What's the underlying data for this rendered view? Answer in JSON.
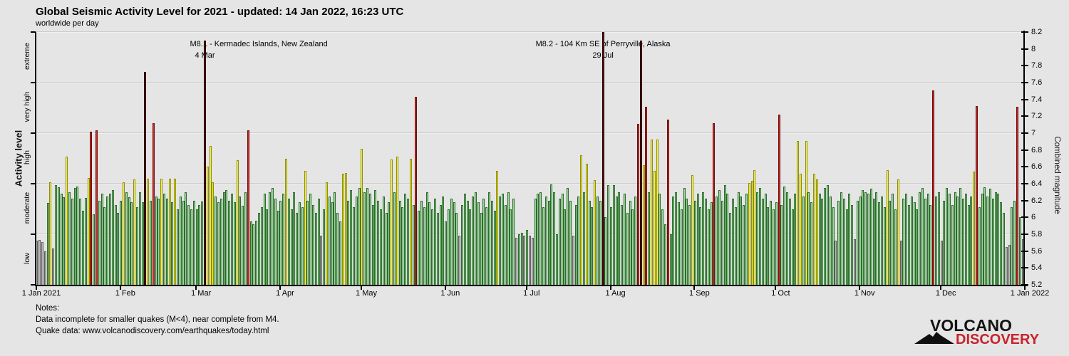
{
  "title": "Global Seismic Activity Level for 2021 - updated: 14 Jan 2022, 16:23 UTC",
  "subtitle": "worldwide per day",
  "y_left": {
    "label": "Activity level",
    "bands": [
      "low",
      "moderate",
      "high",
      "very high",
      "extreme"
    ]
  },
  "y_right": {
    "label": "Combined magnitude",
    "min": 5.2,
    "max": 8.2,
    "tick_step": 0.2
  },
  "x_ticks": [
    "1 Jan 2021",
    "1 Feb",
    "1 Mar",
    "1 Apr",
    "1 May",
    "1 Jun",
    "1 Jul",
    "1 Aug",
    "1 Sep",
    "1 Oct",
    "1 Nov",
    "1 Dec",
    "1 Jan 2022"
  ],
  "annotations": [
    {
      "line1": "M8.1 - Kermadec Islands, New Zealand",
      "line2": "4 Mar",
      "day_index": 62,
      "line1_anchor": "left",
      "line1_offset": -21
    },
    {
      "line1": "M8.2 - 104 Km SE of Perryville, Alaska",
      "line2": "29 Jul",
      "day_index": 209,
      "line1_anchor": "center",
      "line1_offset": 0
    }
  ],
  "notes": {
    "line1": "Notes:",
    "line2": "Data incomplete for smaller quakes (M<4), near complete from M4.",
    "line3": "Quake data: www.volcanodiscovery.com/earthquakes/today.html"
  },
  "logo": {
    "word1": "VOLCANO",
    "word2": "DISCOVERY",
    "word2_color": "#c8232c"
  },
  "colors": {
    "background": "#e5e5e5",
    "gridline": "#cbcbcb",
    "axis": "#000000",
    "levels": {
      "low": {
        "fill": "#b9b9b9",
        "border": "#5f5f5f"
      },
      "moderate": {
        "fill": "#97d897",
        "border": "#2e6b2e"
      },
      "high": {
        "fill": "#f7f43a",
        "border": "#8f8f10"
      },
      "very_high": {
        "fill": "#d62b22",
        "border": "#6b0f0f"
      },
      "extreme": {
        "fill": "#681010",
        "border": "#240303"
      }
    }
  },
  "chart_data": {
    "type": "bar",
    "title": "Global Seismic Activity Level for 2021",
    "xlabel": "",
    "ylabel_left": "Activity level",
    "ylabel_right": "Combined magnitude",
    "ylim": [
      5.2,
      8.2
    ],
    "grid": true,
    "legend": "none",
    "start_date": "2021-01-01",
    "days_per_point": 1,
    "level_thresholds": {
      "low": 5.2,
      "moderate": 5.8,
      "high": 6.4,
      "very_high": 7.0,
      "extreme": 7.6
    },
    "month_day_offsets": [
      0,
      31,
      59,
      90,
      120,
      151,
      181,
      212,
      243,
      273,
      304,
      334,
      365
    ],
    "values": [
      5.72,
      5.73,
      5.71,
      5.6,
      6.17,
      6.42,
      5.63,
      6.38,
      6.36,
      6.28,
      6.24,
      6.72,
      6.3,
      6.22,
      6.35,
      6.37,
      6.22,
      6.08,
      6.23,
      6.47,
      7.02,
      6.04,
      7.03,
      6.2,
      6.28,
      6.12,
      6.25,
      6.28,
      6.32,
      6.15,
      6.05,
      6.2,
      6.42,
      6.3,
      6.24,
      6.18,
      6.45,
      6.12,
      6.3,
      6.18,
      7.73,
      6.46,
      6.2,
      7.12,
      6.25,
      6.22,
      6.46,
      6.28,
      6.22,
      6.46,
      6.18,
      6.46,
      6.1,
      6.25,
      6.2,
      6.3,
      6.15,
      6.1,
      6.2,
      6.1,
      6.15,
      6.19,
      8.1,
      6.6,
      6.85,
      6.42,
      6.25,
      6.18,
      6.22,
      6.3,
      6.32,
      6.2,
      6.28,
      6.18,
      6.68,
      6.25,
      6.14,
      6.3,
      7.03,
      5.95,
      5.92,
      5.96,
      6.05,
      6.12,
      6.28,
      6.1,
      6.3,
      6.35,
      6.22,
      6.08,
      6.2,
      6.28,
      6.7,
      6.22,
      6.1,
      6.3,
      6.05,
      6.18,
      6.12,
      6.55,
      6.2,
      6.28,
      6.15,
      6.05,
      6.22,
      5.78,
      6.1,
      6.42,
      6.25,
      6.18,
      6.3,
      6.05,
      5.95,
      6.52,
      6.53,
      6.2,
      6.32,
      6.12,
      6.25,
      6.35,
      6.81,
      6.3,
      6.35,
      6.28,
      6.15,
      6.32,
      6.2,
      6.1,
      6.25,
      6.05,
      6.18,
      6.69,
      6.3,
      6.72,
      6.2,
      6.12,
      6.28,
      6.22,
      6.7,
      6.15,
      7.43,
      6.08,
      6.2,
      6.12,
      6.3,
      6.18,
      6.1,
      6.22,
      6.05,
      6.15,
      6.25,
      5.95,
      6.1,
      6.22,
      6.18,
      6.05,
      5.78,
      6.15,
      6.28,
      6.2,
      6.1,
      6.25,
      6.3,
      6.18,
      6.05,
      6.22,
      6.12,
      6.3,
      6.2,
      6.08,
      6.55,
      6.25,
      6.28,
      6.15,
      6.3,
      6.1,
      6.22,
      5.76,
      5.8,
      5.82,
      5.78,
      5.85,
      5.78,
      5.76,
      6.22,
      6.28,
      6.3,
      6.12,
      6.25,
      6.2,
      6.39,
      6.3,
      5.8,
      6.22,
      6.28,
      6.1,
      6.35,
      6.2,
      5.78,
      6.15,
      6.25,
      6.74,
      6.3,
      6.64,
      6.2,
      6.12,
      6.44,
      6.25,
      6.2,
      8.2,
      6.0,
      6.38,
      6.12,
      6.38,
      6.25,
      6.3,
      6.15,
      6.28,
      6.05,
      6.2,
      6.1,
      6.25,
      7.11,
      8.1,
      6.62,
      7.31,
      6.3,
      6.92,
      6.55,
      6.92,
      6.28,
      6.1,
      5.92,
      7.16,
      5.8,
      6.25,
      6.3,
      6.18,
      6.1,
      6.35,
      6.22,
      6.15,
      6.5,
      6.2,
      6.28,
      6.12,
      6.3,
      6.22,
      6.1,
      6.18,
      7.12,
      6.25,
      6.32,
      6.2,
      6.38,
      6.28,
      6.05,
      6.22,
      6.12,
      6.3,
      6.25,
      6.15,
      6.28,
      6.41,
      6.43,
      6.56,
      6.3,
      6.35,
      6.22,
      6.28,
      6.12,
      6.2,
      6.1,
      6.18,
      7.22,
      6.15,
      6.37,
      6.3,
      6.22,
      6.1,
      6.28,
      6.91,
      6.52,
      6.25,
      6.91,
      6.3,
      6.18,
      6.52,
      6.45,
      6.28,
      6.22,
      6.35,
      6.38,
      6.25,
      6.12,
      5.72,
      6.2,
      6.3,
      6.22,
      6.1,
      6.28,
      6.15,
      5.74,
      6.2,
      6.25,
      6.32,
      6.3,
      6.28,
      6.34,
      6.22,
      6.3,
      6.18,
      6.25,
      6.12,
      6.56,
      6.2,
      6.28,
      6.1,
      6.45,
      5.72,
      6.22,
      6.28,
      6.15,
      6.25,
      6.18,
      6.1,
      6.3,
      6.35,
      6.22,
      6.28,
      6.15,
      7.51,
      6.25,
      6.3,
      5.72,
      6.2,
      6.35,
      6.28,
      6.15,
      6.3,
      6.25,
      6.35,
      6.22,
      6.28,
      6.15,
      6.25,
      6.54,
      7.32,
      6.12,
      6.28,
      6.36,
      6.25,
      6.34,
      6.22,
      6.3,
      6.28,
      6.18,
      6.05,
      5.65,
      5.67,
      6.12,
      6.2,
      7.31,
      6.0,
      5.74
    ]
  }
}
